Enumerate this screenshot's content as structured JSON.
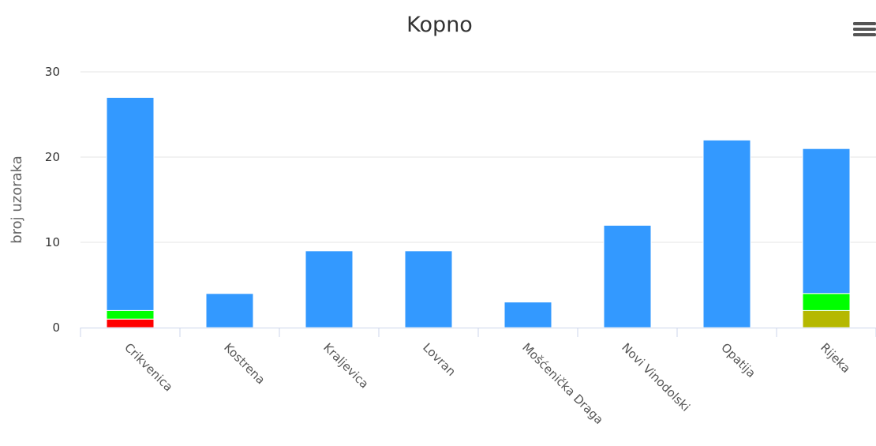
{
  "chart_data": {
    "type": "bar",
    "stacked": true,
    "title": "Kopno",
    "xlabel": "",
    "ylabel": "broj uzoraka",
    "ylim": [
      0,
      30
    ],
    "yticks": [
      0,
      10,
      20,
      30
    ],
    "grid": true,
    "categories": [
      "Crikvenica",
      "Kostrena",
      "Kraljevica",
      "Lovran",
      "Mošćenička Draga",
      "Novi Vinodolski",
      "Opatija",
      "Rijeka"
    ],
    "series": [
      {
        "color": "#ff0000",
        "values": [
          1,
          0,
          0,
          0,
          0,
          0,
          0,
          0
        ]
      },
      {
        "color": "#b5b800",
        "values": [
          0,
          0,
          0,
          0,
          0,
          0,
          0,
          2
        ]
      },
      {
        "color": "#00ff00",
        "values": [
          1,
          0,
          0,
          0,
          0,
          0,
          0,
          2
        ]
      },
      {
        "color": "#3399ff",
        "values": [
          25,
          4,
          9,
          9,
          3,
          12,
          22,
          17
        ]
      }
    ]
  },
  "menu": {
    "icon": "hamburger-menu-icon"
  }
}
